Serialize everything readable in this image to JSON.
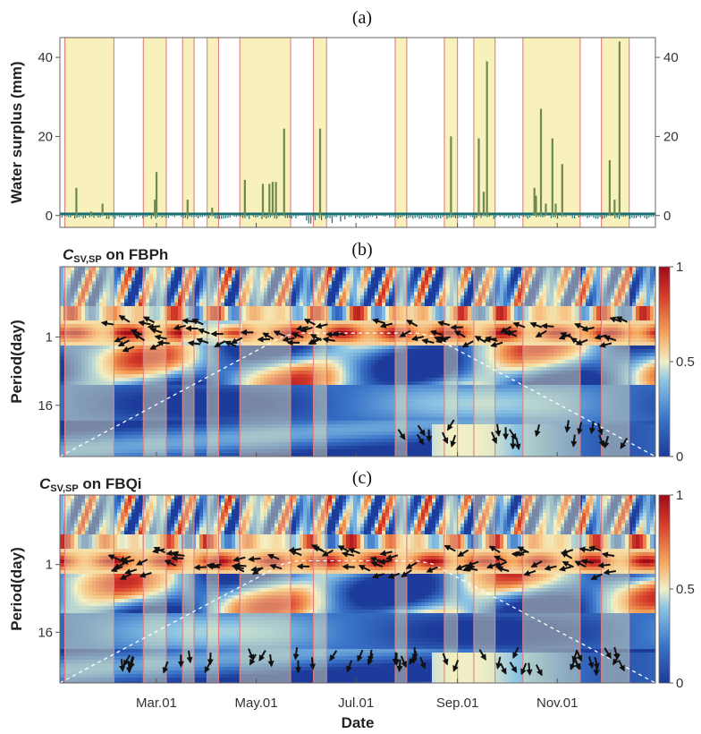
{
  "panels": {
    "a": {
      "tag": "(a)",
      "ylabel": "Water surplus (mm)",
      "yticks": [
        "0",
        "20",
        "40"
      ]
    },
    "b": {
      "tag": "(b)",
      "title_main": "C",
      "title_sub": "SV,SP",
      "title_rest": " on FBPh",
      "ylabel": "Period(day)",
      "yticks": [
        "1",
        "16"
      ],
      "cticks": [
        "1",
        "0.5",
        "0"
      ]
    },
    "c": {
      "tag": "(c)",
      "title_main": "C",
      "title_sub": "SV,SP",
      "title_rest": " on FBQi",
      "ylabel": "Period(day)",
      "yticks": [
        "1",
        "16"
      ],
      "cticks": [
        "1",
        "0.5",
        "0"
      ]
    }
  },
  "xaxis": {
    "label": "Date",
    "ticks": [
      "Mar.01",
      "May.01",
      "Jul.01",
      "Sep.01",
      "Nov.01"
    ]
  },
  "colors": {
    "wet_fill": "#f8f0b8",
    "wet_edge": "#e08080",
    "bar": "#6e8a4e",
    "base": "#1a6e72",
    "cmap": [
      "#1d3b9a",
      "#3a74c8",
      "#8cc4e4",
      "#f1efc8",
      "#f6a35a",
      "#d43a2a",
      "#9e0a1a"
    ]
  },
  "chart_data": [
    {
      "type": "bar",
      "title": "(a)",
      "xlabel": "",
      "ylabel": "Water surplus (mm)",
      "ylim": [
        -3,
        45
      ],
      "xlim": [
        "2019-01-01",
        "2019-12-31"
      ],
      "wet_periods": [
        [
          "2019-01-04",
          "2019-02-03"
        ],
        [
          "2019-02-21",
          "2019-03-07"
        ],
        [
          "2019-03-17",
          "2019-03-24"
        ],
        [
          "2019-04-01",
          "2019-04-08"
        ],
        [
          "2019-04-21",
          "2019-05-22"
        ],
        [
          "2019-06-05",
          "2019-06-13"
        ],
        [
          "2019-07-25",
          "2019-08-01"
        ],
        [
          "2019-08-24",
          "2019-09-01"
        ],
        [
          "2019-09-11",
          "2019-09-24"
        ],
        [
          "2019-10-11",
          "2019-11-15"
        ],
        [
          "2019-11-28",
          "2019-12-15"
        ]
      ],
      "x": [
        "2019-01-11",
        "2019-01-20",
        "2019-01-27",
        "2019-02-28",
        "2019-03-01",
        "2019-03-20",
        "2019-04-04",
        "2019-04-24",
        "2019-05-05",
        "2019-05-09",
        "2019-05-11",
        "2019-05-13",
        "2019-05-18",
        "2019-06-09",
        "2019-08-28",
        "2019-09-14",
        "2019-09-17",
        "2019-09-19",
        "2019-10-18",
        "2019-10-19",
        "2019-10-22",
        "2019-10-25",
        "2019-10-29",
        "2019-10-31",
        "2019-11-04",
        "2019-12-03",
        "2019-12-06",
        "2019-12-09"
      ],
      "values": [
        7,
        1,
        3,
        4,
        11,
        4,
        2,
        9,
        8,
        8,
        8.5,
        8.5,
        22,
        22,
        20,
        19.5,
        6,
        39,
        7,
        5,
        27,
        3,
        19.5,
        3,
        13,
        14,
        4,
        44
      ],
      "series": [
        {
          "values": [
            7,
            1,
            3,
            4,
            11,
            4,
            2,
            9,
            8,
            8,
            8.5,
            8.5,
            22,
            22,
            20,
            19.5,
            6,
            39,
            7,
            5,
            27,
            3,
            19.5,
            3,
            13,
            14,
            4,
            44
          ]
        }
      ]
    },
    {
      "type": "heatmap",
      "title": "CSV,SP on FBPh",
      "xlabel": "",
      "ylabel": "Period(day)",
      "yticks": [
        "1",
        "16"
      ],
      "clim": [
        0,
        1
      ],
      "xticks": [
        "Mar.01",
        "May.01",
        "Jul.01",
        "Sep.01",
        "Nov.01"
      ]
    },
    {
      "type": "heatmap",
      "title": "CSV,SP on FBQi",
      "xlabel": "Date",
      "ylabel": "Period(day)",
      "yticks": [
        "1",
        "16"
      ],
      "clim": [
        0,
        1
      ],
      "xticks": [
        "Mar.01",
        "May.01",
        "Jul.01",
        "Sep.01",
        "Nov.01"
      ]
    }
  ]
}
